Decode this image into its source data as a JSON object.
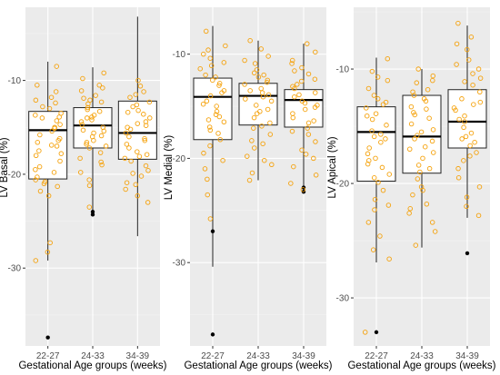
{
  "chart_data": [
    {
      "type": "box",
      "ylabel": "LV Basal (%)",
      "xlabel": "Gestational Age groups (weeks)",
      "categories": [
        "22-27",
        "24-33",
        "34-39"
      ],
      "ylim": [
        -38.3,
        -2.2
      ],
      "yticks": [
        -10,
        -20,
        -30
      ],
      "boxes": [
        {
          "q1": -20.5,
          "median": -15.3,
          "q3": -13.3,
          "whisker_low": -29.2,
          "whisker_high": -8.0,
          "outliers": [
            -37.4
          ]
        },
        {
          "q1": -17.2,
          "median": -14.8,
          "q3": -12.9,
          "whisker_low": -24.4,
          "whisker_high": -8.6,
          "outliers": [
            -24.0,
            -24.3
          ]
        },
        {
          "q1": -18.4,
          "median": -15.6,
          "q3": -12.2,
          "whisker_low": -26.6,
          "whisker_high": -3.2,
          "outliers": []
        }
      ],
      "points": [
        [
          -8.5,
          -10.5,
          -11.2,
          -11.8,
          -12.4,
          -13.0,
          -13.5,
          -13.9,
          -14.3,
          -14.7,
          -15.0,
          -15.4,
          -15.8,
          -16.2,
          -16.6,
          -17.0,
          -17.5,
          -18.0,
          -18.6,
          -19.2,
          -19.8,
          -20.3,
          -20.8,
          -21.3,
          -21.8,
          -22.3,
          -27.3,
          -28.3,
          -29.2,
          -12.1,
          -14.0,
          -16.9,
          -19.5,
          -21.0,
          -15.1,
          -13.7,
          -17.8,
          -20.6,
          -12.8,
          -16.4
        ],
        [
          -9.2,
          -9.8,
          -10.5,
          -11.1,
          -11.6,
          -12.1,
          -12.5,
          -12.9,
          -13.3,
          -13.7,
          -14.0,
          -14.4,
          -14.7,
          -15.0,
          -15.3,
          -15.6,
          -16.0,
          -16.4,
          -16.8,
          -17.2,
          -17.7,
          -18.3,
          -19.0,
          -19.8,
          -20.6,
          -21.2,
          -23.5,
          -10.8,
          -12.3,
          -13.9,
          -15.9,
          -17.0,
          -14.2,
          -11.9,
          -18.7,
          -15.4,
          -13.1,
          -16.6
        ],
        [
          -10.0,
          -10.6,
          -11.2,
          -11.8,
          -12.3,
          -12.8,
          -13.2,
          -13.6,
          -14.0,
          -14.4,
          -14.8,
          -15.2,
          -15.6,
          -16.0,
          -16.4,
          -16.8,
          -17.2,
          -17.6,
          -18.1,
          -18.6,
          -19.1,
          -19.6,
          -20.2,
          -20.9,
          -21.6,
          -22.3,
          -23.0,
          -11.5,
          -13.4,
          -15.0,
          -16.2,
          -17.9,
          -19.9,
          -12.6,
          -14.6,
          -18.3,
          -21.1
        ]
      ]
    },
    {
      "type": "box",
      "ylabel": "LV Medial (%)",
      "xlabel": "Gestational Age groups (weeks)",
      "categories": [
        "22-27",
        "24-33",
        "34-39"
      ],
      "ylim": [
        -38.0,
        -5.5
      ],
      "yticks": [
        -10,
        -20,
        -30
      ],
      "boxes": [
        {
          "q1": -18.2,
          "median": -14.1,
          "q3": -12.3,
          "whisker_low": -30.4,
          "whisker_high": -7.3,
          "outliers": [
            -27.0,
            -36.9
          ]
        },
        {
          "q1": -16.8,
          "median": -14.0,
          "q3": -12.8,
          "whisker_low": -22.1,
          "whisker_high": -8.7,
          "outliers": []
        },
        {
          "q1": -17.0,
          "median": -14.4,
          "q3": -13.4,
          "whisker_low": -23.0,
          "whisker_high": -9.0,
          "outliers": [
            -22.8,
            -23.2
          ]
        }
      ],
      "points": [
        [
          -7.8,
          -9.2,
          -10.0,
          -10.8,
          -11.4,
          -12.0,
          -12.5,
          -13.0,
          -13.5,
          -14.0,
          -14.5,
          -15.0,
          -15.5,
          -16.0,
          -16.5,
          -17.0,
          -17.6,
          -18.2,
          -18.8,
          -19.5,
          -20.2,
          -21.0,
          -22.0,
          -23.5,
          -25.8,
          -9.6,
          -11.1,
          -12.8,
          -14.8,
          -16.3,
          -13.7,
          -15.8,
          -12.2,
          -17.3,
          -10.4
        ],
        [
          -8.7,
          -9.5,
          -10.2,
          -10.9,
          -11.5,
          -12.0,
          -12.5,
          -12.9,
          -13.3,
          -13.7,
          -14.1,
          -14.5,
          -14.9,
          -15.3,
          -15.7,
          -16.1,
          -16.6,
          -17.1,
          -17.7,
          -18.3,
          -19.0,
          -19.8,
          -20.6,
          -21.4,
          -22.1,
          -10.6,
          -12.2,
          -13.5,
          -14.3,
          -15.5,
          -16.9,
          -11.8,
          -13.9,
          -18.6,
          -20.2,
          -12.7
        ],
        [
          -9.0,
          -9.8,
          -10.6,
          -11.3,
          -11.9,
          -12.4,
          -12.9,
          -13.3,
          -13.7,
          -14.1,
          -14.5,
          -14.9,
          -15.3,
          -15.7,
          -16.1,
          -16.6,
          -17.1,
          -17.7,
          -18.4,
          -19.2,
          -20.0,
          -20.8,
          -21.6,
          -22.4,
          -23.0,
          -10.9,
          -12.6,
          -13.9,
          -15.1,
          -16.4,
          -13.1,
          -14.7,
          -17.4,
          -19.6,
          -11.6
        ]
      ]
    },
    {
      "type": "box",
      "ylabel": "LV Apical (%)",
      "xlabel": "Gestational Age groups (weeks)",
      "categories": [
        "22-27",
        "24-33",
        "34-39"
      ],
      "ylim": [
        -34.2,
        -4.6
      ],
      "yticks": [
        -10,
        -20,
        -30
      ],
      "boxes": [
        {
          "q1": -19.8,
          "median": -15.5,
          "q3": -13.3,
          "whisker_low": -26.9,
          "whisker_high": -9.0,
          "outliers": [
            -33.0
          ]
        },
        {
          "q1": -19.1,
          "median": -15.9,
          "q3": -12.3,
          "whisker_low": -25.6,
          "whisker_high": -10.0,
          "outliers": []
        },
        {
          "q1": -16.9,
          "median": -14.6,
          "q3": -11.8,
          "whisker_low": -23.0,
          "whisker_high": -6.2,
          "outliers": [
            -26.1
          ]
        }
      ],
      "points": [
        [
          -9.1,
          -10.2,
          -11.0,
          -11.7,
          -12.3,
          -12.9,
          -13.4,
          -13.9,
          -14.4,
          -14.9,
          -15.4,
          -15.9,
          -16.4,
          -16.9,
          -17.4,
          -18.0,
          -18.6,
          -19.2,
          -19.9,
          -20.6,
          -21.4,
          -22.3,
          -23.4,
          -24.6,
          -25.8,
          -26.6,
          -10.7,
          -12.6,
          -14.1,
          -16.1,
          -17.8,
          -19.5,
          -21.9,
          -13.1,
          -15.7,
          -18.3,
          -33.0
        ],
        [
          -10.0,
          -10.6,
          -11.2,
          -11.8,
          -12.3,
          -12.8,
          -13.3,
          -13.8,
          -14.3,
          -14.8,
          -15.3,
          -15.8,
          -16.3,
          -16.8,
          -17.3,
          -17.8,
          -18.4,
          -19.0,
          -19.6,
          -20.3,
          -21.0,
          -21.8,
          -22.6,
          -23.4,
          -24.2,
          -25.4,
          -11.0,
          -12.6,
          -14.0,
          -15.5,
          -17.0,
          -18.7,
          -20.6,
          -13.5,
          -16.1,
          -22.2,
          -12.0
        ],
        [
          -6.0,
          -7.2,
          -8.3,
          -9.2,
          -10.0,
          -10.8,
          -11.4,
          -12.0,
          -12.6,
          -13.1,
          -13.6,
          -14.1,
          -14.6,
          -15.1,
          -15.6,
          -16.1,
          -16.7,
          -17.3,
          -18.0,
          -18.7,
          -19.5,
          -20.3,
          -21.2,
          -22.0,
          -22.8,
          -7.8,
          -9.6,
          -11.1,
          -12.9,
          -14.4,
          -15.9,
          -17.6,
          -13.4,
          -16.4,
          -10.4
        ]
      ]
    }
  ],
  "style": {
    "panel_bg": "#ebebeb",
    "grid_major": "#ffffff",
    "grid_minor": "#f4f4f4",
    "point_color": "#f5a20c",
    "outlier_color": "#000000",
    "box_stroke": "#222222",
    "box_fill": "#ffffff"
  }
}
